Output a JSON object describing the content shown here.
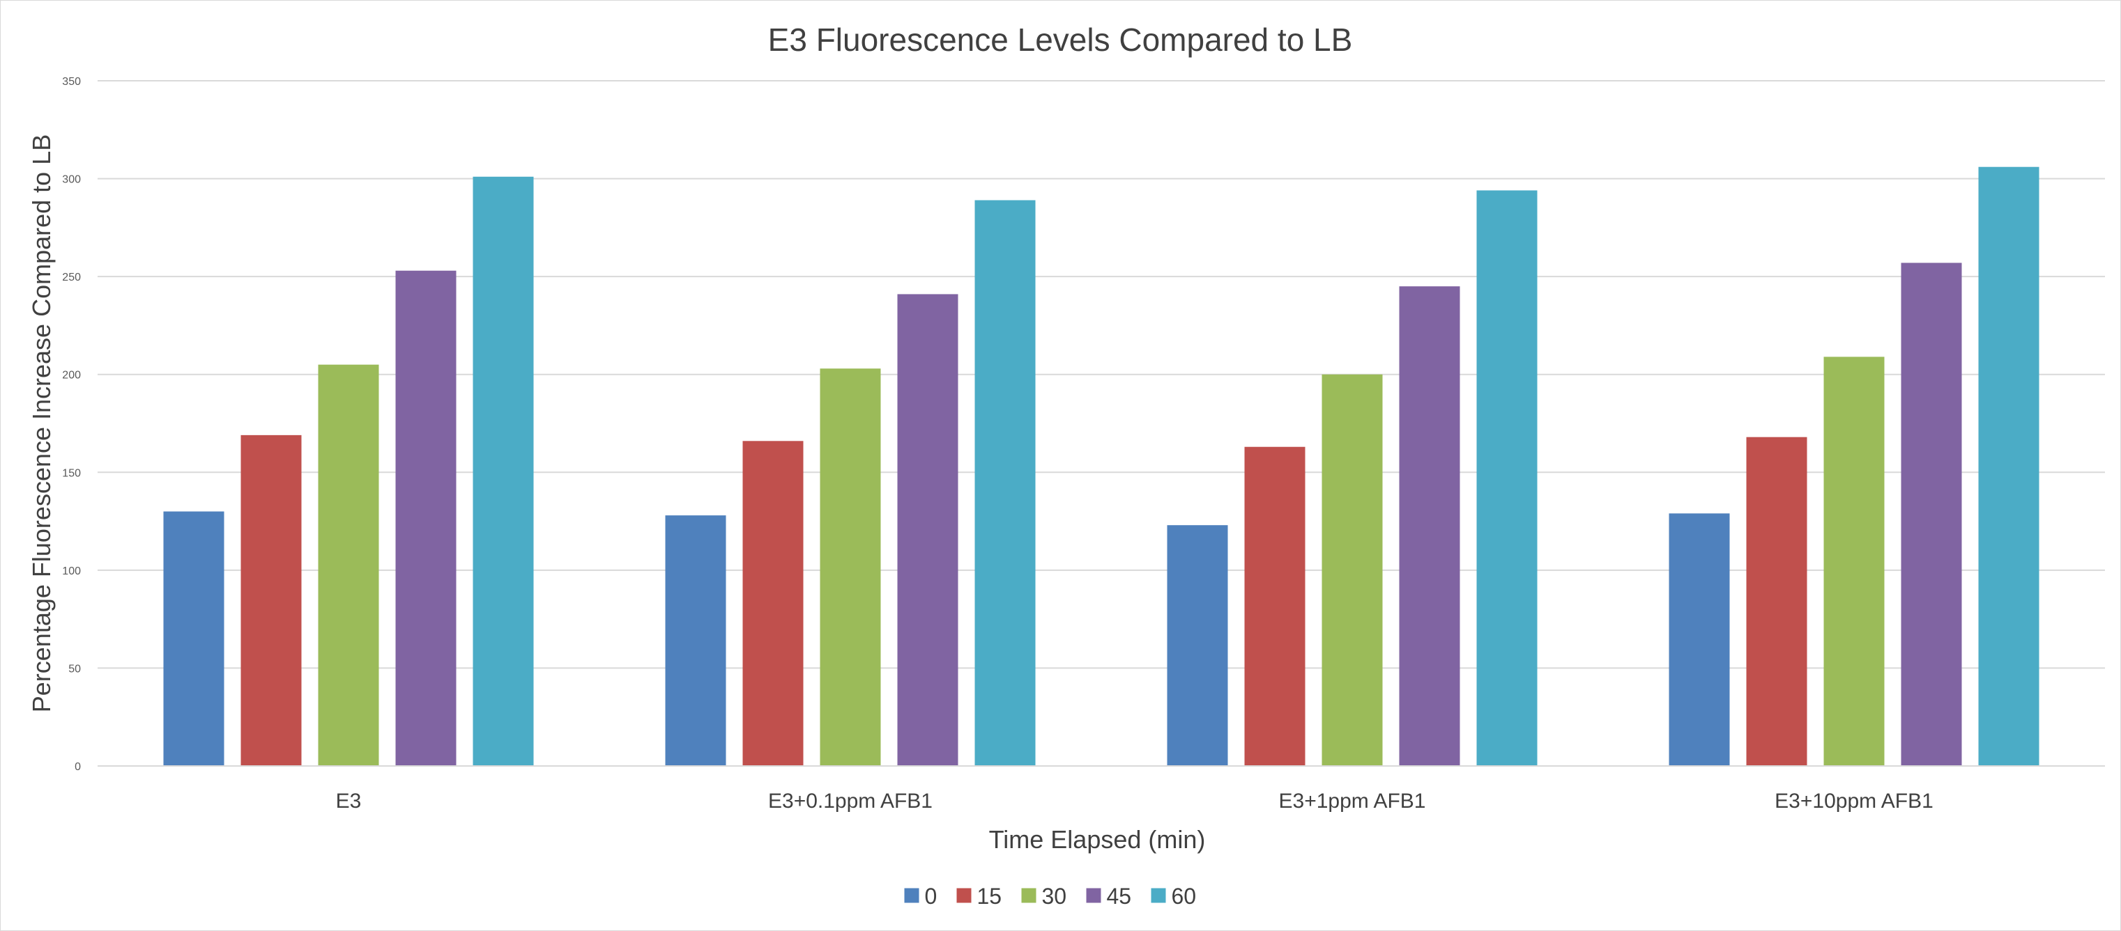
{
  "chart_data": {
    "type": "bar",
    "title": "E3 Fluorescence Levels Compared to LB",
    "xlabel": "Time Elapsed (min)",
    "ylabel": "Percentage Fluorescence Increase Compared to LB",
    "ylim": [
      0,
      350
    ],
    "yticks": [
      0,
      50,
      100,
      150,
      200,
      250,
      300,
      350
    ],
    "ytick_labels": [
      "0",
      "50",
      "100",
      "150",
      "200",
      "250",
      "300",
      "350"
    ],
    "grid": true,
    "legend_position": "bottom",
    "categories": [
      "E3",
      "E3+0.1ppm AFB1",
      "E3+1ppm AFB1",
      "E3+10ppm AFB1"
    ],
    "series": [
      {
        "name": "0",
        "color": "#4F81BD",
        "values": [
          130,
          128,
          123,
          129
        ]
      },
      {
        "name": "15",
        "color": "#C0504D",
        "values": [
          169,
          166,
          163,
          168
        ]
      },
      {
        "name": "30",
        "color": "#9BBB59",
        "values": [
          205,
          203,
          200,
          209
        ]
      },
      {
        "name": "45",
        "color": "#8064A2",
        "values": [
          253,
          241,
          245,
          257
        ]
      },
      {
        "name": "60",
        "color": "#4BACC6",
        "values": [
          301,
          289,
          294,
          306
        ]
      }
    ]
  }
}
